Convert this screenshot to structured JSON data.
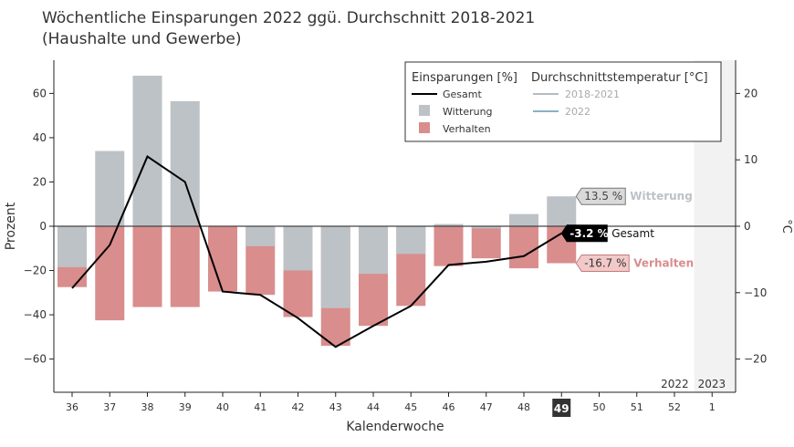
{
  "title_line1": "Wöchentliche Einsparungen 2022 ggü. Durchschnitt 2018-2021",
  "title_line2": "(Haushalte und Gewerbe)",
  "colors": {
    "witterung": "#bdc2c6",
    "verhalten": "#d98d8d",
    "gesamt": "#000000",
    "temp_2018_2021": "#b4bcc2",
    "temp_2022": "#8ab3c4",
    "year_shade": "#f2f2f2"
  },
  "chart_data": {
    "type": "bar",
    "xlabel": "Kalenderwoche",
    "ylabel": "Prozent",
    "y2label": "°C",
    "ylim": [
      -75,
      75
    ],
    "y2lim": [
      -25,
      25
    ],
    "yticks": [
      -60,
      -40,
      -20,
      0,
      20,
      40,
      60
    ],
    "y2ticks": [
      -20,
      -10,
      0,
      10,
      20
    ],
    "categories": [
      "36",
      "37",
      "38",
      "39",
      "40",
      "41",
      "42",
      "43",
      "44",
      "45",
      "46",
      "47",
      "48",
      "49",
      "50",
      "51",
      "52",
      "1"
    ],
    "highlight_category": "49",
    "year_labels": [
      "2022",
      "2023"
    ],
    "series": [
      {
        "name": "Witterung",
        "type": "bar",
        "values": [
          -18.5,
          34,
          68,
          56.5,
          0,
          -9,
          -20,
          -37,
          -21.5,
          -12.5,
          1,
          -1,
          5.5,
          13.5,
          null,
          null,
          null,
          null
        ]
      },
      {
        "name": "Verhalten",
        "type": "bar",
        "values": [
          -27.5,
          -42.5,
          -36.5,
          -36.5,
          -29.5,
          -31,
          -41,
          -54,
          -45,
          -36,
          -18,
          -14.5,
          -19,
          -16.7,
          null,
          null,
          null,
          null
        ]
      },
      {
        "name": "Gesamt",
        "type": "line",
        "values": [
          -28,
          -8.5,
          31.5,
          20,
          -29.5,
          -31,
          -41.5,
          -54.5,
          -45,
          -36,
          -17.5,
          -16,
          -13.5,
          -3.2,
          null,
          null,
          null,
          null
        ]
      }
    ],
    "legend": {
      "placement": "top-right",
      "group1_title": "Einsparungen [%]",
      "group2_title": "Durchschnittstemperatur [°C]",
      "items": [
        {
          "label": "Gesamt",
          "kind": "line",
          "color_key": "gesamt"
        },
        {
          "label": "Witterung",
          "kind": "box",
          "color_key": "witterung"
        },
        {
          "label": "Verhalten",
          "kind": "box",
          "color_key": "verhalten"
        }
      ],
      "temp_items": [
        {
          "label": "2018-2021",
          "color_key": "temp_2018_2021"
        },
        {
          "label": "2022",
          "color_key": "temp_2022"
        }
      ]
    },
    "annotations": [
      {
        "text": "13.5 %",
        "label": "Witterung",
        "value": 13.5,
        "style": "witterung"
      },
      {
        "text": "-3.2 %",
        "label": "Gesamt",
        "value": -3.2,
        "style": "gesamt"
      },
      {
        "text": "-16.7 %",
        "label": "Verhalten",
        "value": -16.7,
        "style": "verhalten"
      }
    ]
  }
}
